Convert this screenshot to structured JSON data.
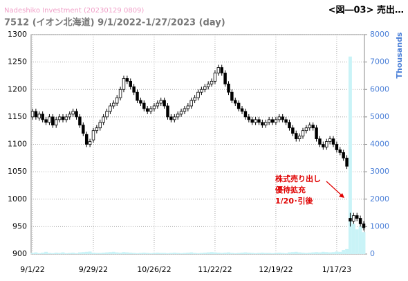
{
  "chart_data": {
    "type": "candlestick",
    "source": "Nadeshiko Investment  (20230129 0809)",
    "title": "7512 (イオン北海道) 9/1/2022-1/27/2023 (day)",
    "corner_title": "<図―03> 売出…",
    "annotation": [
      "株式売り出し",
      "優待拡充",
      "1/20･引後"
    ],
    "y2_label": "Thousands",
    "categories": [
      "9/1/22",
      null,
      null,
      null,
      null,
      null,
      null,
      null,
      null,
      null,
      null,
      null,
      null,
      null,
      null,
      null,
      null,
      null,
      "9/29/22",
      null,
      null,
      null,
      null,
      null,
      null,
      null,
      null,
      null,
      null,
      null,
      null,
      null,
      null,
      null,
      null,
      null,
      "10/26/22",
      null,
      null,
      null,
      null,
      null,
      null,
      null,
      null,
      null,
      null,
      null,
      null,
      null,
      null,
      null,
      null,
      null,
      "11/22/22",
      null,
      null,
      null,
      null,
      null,
      null,
      null,
      null,
      null,
      null,
      null,
      null,
      null,
      null,
      null,
      null,
      null,
      "12/19/22",
      null,
      null,
      null,
      null,
      null,
      null,
      null,
      null,
      null,
      null,
      null,
      null,
      null,
      null,
      null,
      null,
      null,
      "1/17/23",
      null,
      null,
      null,
      null,
      null,
      null,
      null,
      null
    ],
    "open": [
      1150,
      1160,
      1148,
      1155,
      1145,
      1140,
      1150,
      1135,
      1145,
      1150,
      1145,
      1150,
      1155,
      1160,
      1150,
      1135,
      1118,
      1100,
      1108,
      1125,
      1130,
      1140,
      1150,
      1160,
      1170,
      1175,
      1185,
      1200,
      1220,
      1215,
      1205,
      1195,
      1180,
      1175,
      1165,
      1160,
      1165,
      1170,
      1175,
      1180,
      1170,
      1150,
      1145,
      1150,
      1155,
      1160,
      1165,
      1170,
      1180,
      1185,
      1195,
      1200,
      1205,
      1210,
      1215,
      1230,
      1240,
      1230,
      1210,
      1195,
      1180,
      1175,
      1165,
      1160,
      1150,
      1145,
      1140,
      1145,
      1140,
      1135,
      1140,
      1145,
      1140,
      1145,
      1150,
      1145,
      1140,
      1130,
      1120,
      1110,
      1115,
      1125,
      1130,
      1135,
      1130,
      1110,
      1100,
      1095,
      1105,
      1110,
      1100,
      1090,
      1085,
      1075,
      965,
      960,
      970,
      965,
      955
    ],
    "high": [
      1165,
      1165,
      1160,
      1160,
      1150,
      1155,
      1155,
      1150,
      1155,
      1155,
      1155,
      1160,
      1165,
      1165,
      1155,
      1140,
      1123,
      1110,
      1130,
      1135,
      1145,
      1155,
      1165,
      1175,
      1180,
      1190,
      1205,
      1225,
      1225,
      1220,
      1210,
      1200,
      1185,
      1180,
      1170,
      1170,
      1175,
      1180,
      1185,
      1185,
      1175,
      1155,
      1155,
      1160,
      1165,
      1170,
      1175,
      1185,
      1190,
      1200,
      1205,
      1210,
      1215,
      1220,
      1235,
      1245,
      1245,
      1235,
      1215,
      1200,
      1185,
      1180,
      1170,
      1165,
      1155,
      1150,
      1150,
      1150,
      1145,
      1145,
      1150,
      1150,
      1150,
      1155,
      1155,
      1150,
      1145,
      1135,
      1125,
      1120,
      1130,
      1135,
      1140,
      1140,
      1135,
      1115,
      1105,
      1110,
      1115,
      1115,
      1105,
      1095,
      1090,
      1080,
      975,
      975,
      975,
      970,
      960
    ],
    "low": [
      1145,
      1145,
      1143,
      1140,
      1135,
      1135,
      1130,
      1130,
      1140,
      1140,
      1140,
      1145,
      1150,
      1145,
      1130,
      1115,
      1095,
      1095,
      1103,
      1120,
      1125,
      1135,
      1145,
      1155,
      1165,
      1170,
      1180,
      1195,
      1210,
      1200,
      1190,
      1175,
      1170,
      1160,
      1155,
      1155,
      1160,
      1165,
      1170,
      1165,
      1145,
      1140,
      1140,
      1145,
      1150,
      1155,
      1160,
      1165,
      1175,
      1180,
      1190,
      1195,
      1200,
      1205,
      1210,
      1225,
      1225,
      1205,
      1190,
      1175,
      1170,
      1160,
      1155,
      1145,
      1140,
      1135,
      1135,
      1135,
      1130,
      1130,
      1135,
      1135,
      1135,
      1140,
      1140,
      1135,
      1125,
      1115,
      1105,
      1105,
      1110,
      1120,
      1125,
      1125,
      1105,
      1095,
      1090,
      1090,
      1100,
      1095,
      1085,
      1080,
      1070,
      1055,
      950,
      955,
      960,
      950,
      943
    ],
    "close": [
      1160,
      1150,
      1155,
      1145,
      1140,
      1150,
      1135,
      1145,
      1150,
      1145,
      1150,
      1155,
      1160,
      1150,
      1135,
      1120,
      1100,
      1105,
      1125,
      1130,
      1140,
      1150,
      1160,
      1170,
      1175,
      1185,
      1200,
      1220,
      1215,
      1205,
      1195,
      1180,
      1175,
      1165,
      1160,
      1165,
      1170,
      1175,
      1180,
      1170,
      1150,
      1145,
      1150,
      1155,
      1160,
      1165,
      1170,
      1180,
      1185,
      1195,
      1200,
      1205,
      1210,
      1215,
      1230,
      1240,
      1230,
      1210,
      1195,
      1180,
      1175,
      1165,
      1160,
      1150,
      1145,
      1140,
      1145,
      1140,
      1135,
      1140,
      1145,
      1140,
      1145,
      1150,
      1145,
      1140,
      1130,
      1120,
      1110,
      1115,
      1125,
      1130,
      1135,
      1130,
      1110,
      1100,
      1095,
      1105,
      1110,
      1100,
      1090,
      1085,
      1075,
      1060,
      960,
      970,
      965,
      955,
      948
    ],
    "volume": [
      40,
      60,
      30,
      50,
      80,
      40,
      30,
      50,
      40,
      60,
      30,
      40,
      50,
      30,
      60,
      70,
      80,
      90,
      50,
      40,
      40,
      50,
      60,
      70,
      80,
      60,
      50,
      70,
      60,
      50,
      40,
      30,
      40,
      50,
      40,
      30,
      40,
      50,
      40,
      40,
      30,
      40,
      50,
      40,
      30,
      40,
      50,
      60,
      40,
      30,
      40,
      50,
      60,
      70,
      60,
      50,
      40,
      50,
      60,
      40,
      30,
      40,
      50,
      60,
      50,
      40,
      30,
      40,
      50,
      40,
      40,
      30,
      40,
      50,
      40,
      30,
      60,
      70,
      80,
      60,
      50,
      40,
      50,
      60,
      70,
      60,
      80,
      70,
      60,
      70,
      90,
      80,
      150,
      180,
      7200,
      1100,
      900,
      1000,
      800
    ],
    "up_color": "#ffffff",
    "down_color": "#000000",
    "volume_color": "#c9f3f7",
    "ylim": [
      900,
      1300
    ],
    "yticks": [
      900,
      950,
      1000,
      1050,
      1100,
      1150,
      1200,
      1250,
      1300
    ],
    "y2lim": [
      0,
      8000
    ],
    "y2ticks": [
      0,
      1000,
      2000,
      3000,
      4000,
      5000,
      6000,
      7000,
      8000
    ],
    "grid": true
  }
}
